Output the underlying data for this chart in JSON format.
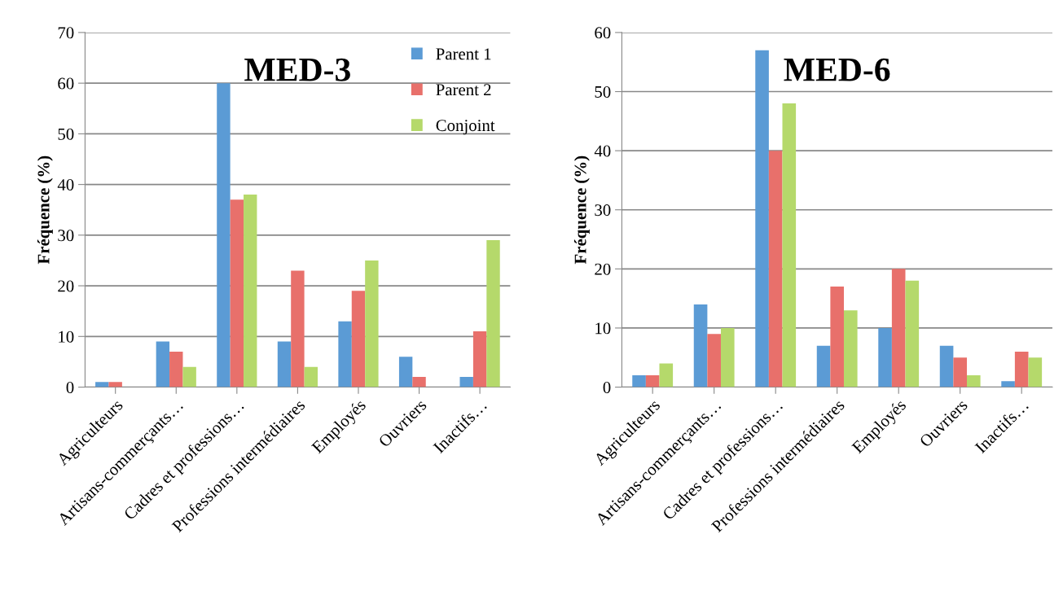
{
  "chart_data": [
    {
      "type": "bar",
      "title": "MED-3",
      "ylabel": "Fréquence (%)",
      "categories": [
        "Agriculteurs",
        "Artisans-commerçants…",
        "Cadres et professions…",
        "Professions intermédiaires",
        "Employés",
        "Ouvriers",
        "Inactifs…"
      ],
      "series": [
        {
          "name": "Parent 1",
          "color": "#5b9bd5",
          "values": [
            1,
            9,
            60,
            9,
            13,
            6,
            2
          ]
        },
        {
          "name": "Parent 2",
          "color": "#e8706b",
          "values": [
            1,
            7,
            37,
            23,
            19,
            2,
            11
          ]
        },
        {
          "name": "Conjoint",
          "color": "#b5d96b",
          "values": [
            0,
            4,
            38,
            4,
            25,
            0,
            29
          ]
        }
      ],
      "ylim": [
        0,
        70
      ],
      "yticks": [
        0,
        10,
        20,
        30,
        40,
        50,
        60,
        70
      ],
      "grid": "y",
      "legend": "top right"
    },
    {
      "type": "bar",
      "title": "MED-6",
      "ylabel": "Fréquence (%)",
      "categories": [
        "Agriculteurs",
        "Artisans-commerçants…",
        "Cadres et professions…",
        "Professions intermédiaires",
        "Employés",
        "Ouvriers",
        "Inactifs…"
      ],
      "series": [
        {
          "color": "#5b9bd5",
          "values": [
            2,
            14,
            57,
            7,
            10,
            7,
            1
          ]
        },
        {
          "color": "#e8706b",
          "values": [
            2,
            9,
            40,
            17,
            20,
            5,
            6
          ]
        },
        {
          "color": "#b5d96b",
          "values": [
            4,
            10,
            48,
            13,
            18,
            2,
            5
          ]
        }
      ],
      "ylim": [
        0,
        60
      ],
      "yticks": [
        0,
        10,
        20,
        30,
        40,
        50,
        60
      ],
      "grid": "y"
    }
  ]
}
